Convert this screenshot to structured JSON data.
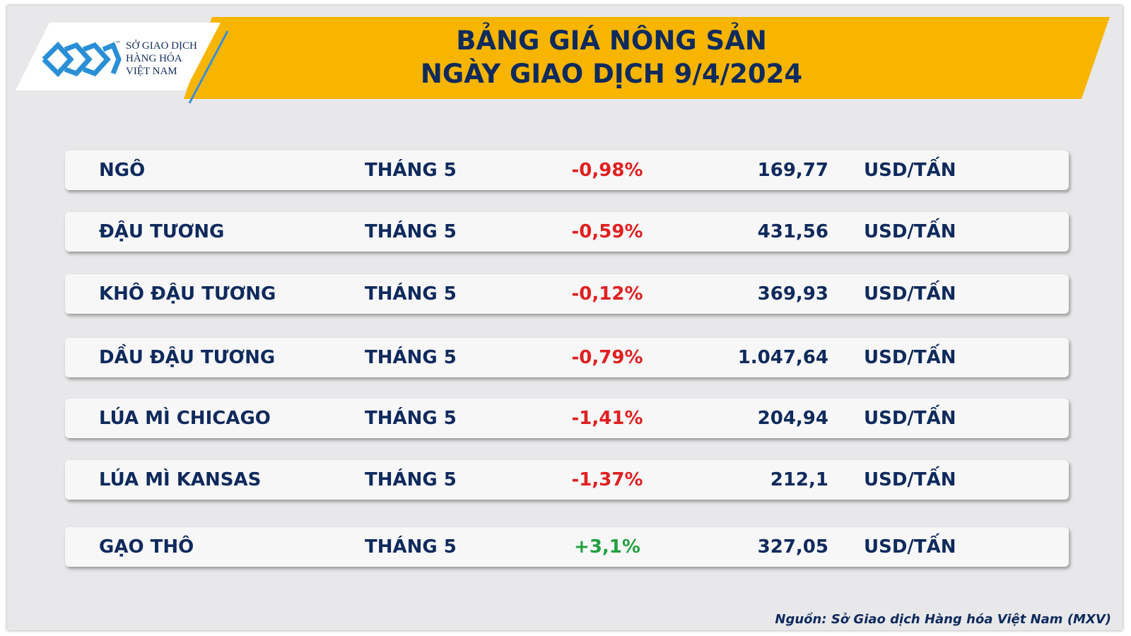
{
  "header": {
    "logo": {
      "trademark": "™",
      "lines": [
        "SỞ GIAO DỊCH",
        "HÀNG HÓA",
        "VIỆT NAM"
      ]
    },
    "title": [
      "BẢNG GIÁ NÔNG SẢN",
      "NGÀY GIAO DỊCH 9/4/2024"
    ]
  },
  "table": {
    "rows": [
      [
        "NGÔ",
        "THÁNG 5",
        "-0,98%",
        "169,77",
        "USD/TẤN"
      ],
      [
        "ĐẬU TƯƠNG",
        "THÁNG 5",
        "-0,59%",
        "431,56",
        "USD/TẤN"
      ],
      [
        "KHÔ ĐẬU TƯƠNG",
        "THÁNG 5",
        "-0,12%",
        "369,93",
        "USD/TẤN"
      ],
      [
        "DẦU ĐẬU TƯƠNG",
        "THÁNG 5",
        "-0,79%",
        "1.047,64",
        "USD/TẤN"
      ],
      [
        "LÚA MÌ CHICAGO",
        "THÁNG 5",
        "-1,41%",
        "204,94",
        "USD/TẤN"
      ],
      [
        "LÚA MÌ KANSAS",
        "THÁNG 5",
        "-1,37%",
        "212,1",
        "USD/TẤN"
      ],
      [
        "GẠO THÔ",
        "THÁNG 5",
        "+3,1%",
        "327,05",
        "USD/TẤN"
      ]
    ]
  },
  "source": "Nguồn: Sở Giao dịch Hàng hóa Việt Nam (MXV)"
}
